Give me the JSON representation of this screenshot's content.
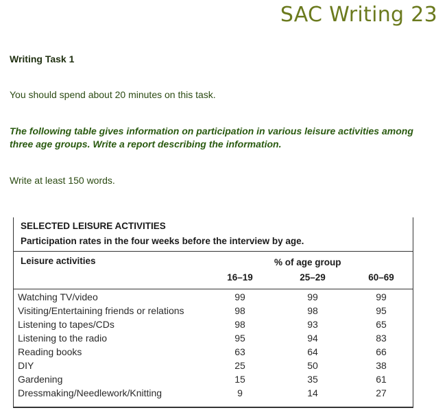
{
  "header": {
    "title": "SAC Writing 23"
  },
  "task": {
    "heading": "Writing Task 1",
    "instruction": "You should spend about 20 minutes on this task.",
    "prompt": "The following table gives information on participation in various leisure activities among three age groups.   Write a report describing the information.",
    "word_count": "Write at least 150 words."
  },
  "table": {
    "title": "SELECTED LEISURE ACTIVITIES",
    "subtitle": "Participation rates in the four weeks before the interview by age.",
    "activity_header": "Leisure activities",
    "group_header": "% of age group",
    "age_groups": [
      "16–19",
      "25–29",
      "60–69"
    ],
    "rows": [
      {
        "activity": "Watching TV/video",
        "values": [
          "99",
          "99",
          "99"
        ]
      },
      {
        "activity": "Visiting/Entertaining friends or relations",
        "values": [
          "98",
          "98",
          "95"
        ]
      },
      {
        "activity": "Listening to tapes/CDs",
        "values": [
          "98",
          "93",
          "65"
        ]
      },
      {
        "activity": "Listening to the radio",
        "values": [
          "95",
          "94",
          "83"
        ]
      },
      {
        "activity": "Reading books",
        "values": [
          "63",
          "64",
          "66"
        ]
      },
      {
        "activity": "DIY",
        "values": [
          "25",
          "50",
          "38"
        ]
      },
      {
        "activity": "Gardening",
        "values": [
          "15",
          "35",
          "61"
        ]
      },
      {
        "activity": "Dressmaking/Needlework/Knitting",
        "values": [
          "9",
          "14",
          "27"
        ]
      }
    ]
  }
}
